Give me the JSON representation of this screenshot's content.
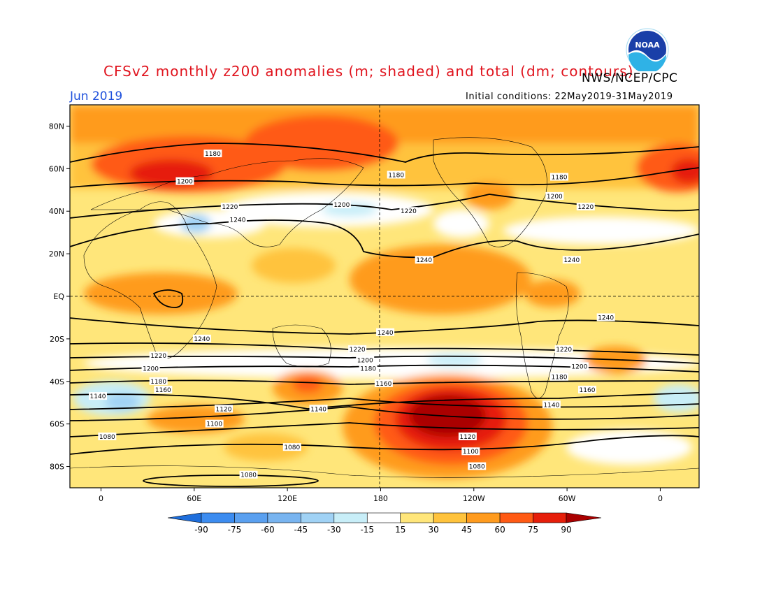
{
  "header": {
    "title": "CFSv2 monthly z200 anomalies (m; shaded) and total (dm; contours)",
    "agency": "NWS/NCEP/CPC",
    "month": "Jun 2019",
    "initial_conditions": "Initial conditions: 22May2019-31May2019",
    "logo_text": "NOAA"
  },
  "map": {
    "lon_ticks": [
      {
        "label": "0",
        "lon": 0
      },
      {
        "label": "60E",
        "lon": 60
      },
      {
        "label": "120E",
        "lon": 120
      },
      {
        "label": "180",
        "lon": 180
      },
      {
        "label": "120W",
        "lon": 240
      },
      {
        "label": "60W",
        "lon": 300
      },
      {
        "label": "0",
        "lon": 360
      }
    ],
    "lat_ticks": [
      {
        "label": "80N",
        "lat": 80
      },
      {
        "label": "60N",
        "lat": 60
      },
      {
        "label": "40N",
        "lat": 40
      },
      {
        "label": "20N",
        "lat": 20
      },
      {
        "label": "EQ",
        "lat": 0
      },
      {
        "label": "20S",
        "lat": -20
      },
      {
        "label": "40S",
        "lat": -40
      },
      {
        "label": "60S",
        "lat": -60
      },
      {
        "label": "80S",
        "lat": -80
      }
    ],
    "lon_range": [
      -20,
      385
    ],
    "lat_range": [
      -90,
      90
    ],
    "contour_labels": [
      {
        "text": "1180",
        "lon": 72,
        "lat": 67
      },
      {
        "text": "1200",
        "lon": 54,
        "lat": 54
      },
      {
        "text": "1180",
        "lon": 190,
        "lat": 57
      },
      {
        "text": "1180",
        "lon": 295,
        "lat": 56
      },
      {
        "text": "1200",
        "lon": 292,
        "lat": 47
      },
      {
        "text": "1220",
        "lon": 83,
        "lat": 42
      },
      {
        "text": "1200",
        "lon": 155,
        "lat": 43
      },
      {
        "text": "1220",
        "lon": 198,
        "lat": 40
      },
      {
        "text": "1220",
        "lon": 312,
        "lat": 42
      },
      {
        "text": "1240",
        "lon": 88,
        "lat": 36
      },
      {
        "text": "1240",
        "lon": 208,
        "lat": 17
      },
      {
        "text": "1240",
        "lon": 303,
        "lat": 17
      },
      {
        "text": "1240",
        "lon": 183,
        "lat": -17
      },
      {
        "text": "1240",
        "lon": 325,
        "lat": -10
      },
      {
        "text": "1240",
        "lon": 65,
        "lat": -20
      },
      {
        "text": "1220",
        "lon": 37,
        "lat": -28
      },
      {
        "text": "1200",
        "lon": 32,
        "lat": -34
      },
      {
        "text": "1180",
        "lon": 37,
        "lat": -40
      },
      {
        "text": "1160",
        "lon": 40,
        "lat": -44
      },
      {
        "text": "1140",
        "lon": -2,
        "lat": -47
      },
      {
        "text": "1220",
        "lon": 165,
        "lat": -25
      },
      {
        "text": "1200",
        "lon": 170,
        "lat": -30
      },
      {
        "text": "1180",
        "lon": 172,
        "lat": -34
      },
      {
        "text": "1160",
        "lon": 182,
        "lat": -41
      },
      {
        "text": "1220",
        "lon": 298,
        "lat": -25
      },
      {
        "text": "1200",
        "lon": 308,
        "lat": -33
      },
      {
        "text": "1180",
        "lon": 295,
        "lat": -38
      },
      {
        "text": "1160",
        "lon": 313,
        "lat": -44
      },
      {
        "text": "1140",
        "lon": 290,
        "lat": -51
      },
      {
        "text": "1140",
        "lon": 140,
        "lat": -53
      },
      {
        "text": "1120",
        "lon": 79,
        "lat": -53
      },
      {
        "text": "1100",
        "lon": 73,
        "lat": -60
      },
      {
        "text": "1080",
        "lon": 4,
        "lat": -66
      },
      {
        "text": "1120",
        "lon": 236,
        "lat": -66
      },
      {
        "text": "1100",
        "lon": 238,
        "lat": -73
      },
      {
        "text": "1080",
        "lon": 242,
        "lat": -80
      },
      {
        "text": "1080",
        "lon": 123,
        "lat": -71
      },
      {
        "text": "1080",
        "lon": 95,
        "lat": -84
      }
    ]
  },
  "colorbar": {
    "levels": [
      "-90",
      "-75",
      "-60",
      "-45",
      "-30",
      "-15",
      "15",
      "30",
      "45",
      "60",
      "75",
      "90"
    ],
    "colors": [
      "#1e6edc",
      "#3c8cf0",
      "#5aa0f0",
      "#78b4f0",
      "#a0d2f5",
      "#c8eef8",
      "#ffffff",
      "#ffe67a",
      "#ffc33c",
      "#ff9b1e",
      "#ff5a14",
      "#e61e0a",
      "#aa0000"
    ]
  }
}
